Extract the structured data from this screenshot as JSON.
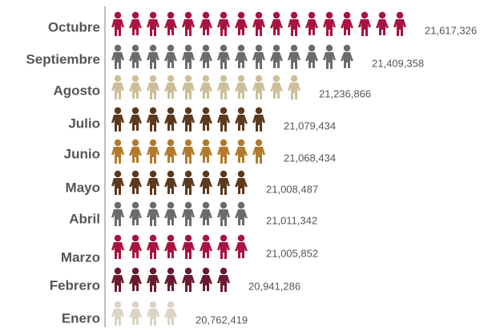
{
  "chart_data": {
    "type": "pictogram",
    "categories": [
      "Octubre",
      "Septiembre",
      "Agosto",
      "Julio",
      "Junio",
      "Mayo",
      "Abril",
      "Marzo",
      "Febrero",
      "Enero"
    ],
    "values": [
      21617326,
      21409358,
      21236866,
      21079434,
      21068434,
      21008487,
      21011342,
      21005852,
      20941286,
      20762419
    ],
    "value_labels": [
      "21,617,326",
      "21,409,358",
      "21,236,866",
      "21,079,434",
      "21,068,434",
      "21,008,487",
      "21,011,342",
      "21,005,852",
      "20,941,286",
      "20,762,419"
    ],
    "colors": [
      "#a8133f",
      "#6b6b6b",
      "#cbbf98",
      "#5c381c",
      "#b27b2b",
      "#5c381c",
      "#6b6b6b",
      "#a8133f",
      "#6a1a2f",
      "#dbd3c4"
    ],
    "xlim": [
      20450000,
      21700000
    ]
  }
}
